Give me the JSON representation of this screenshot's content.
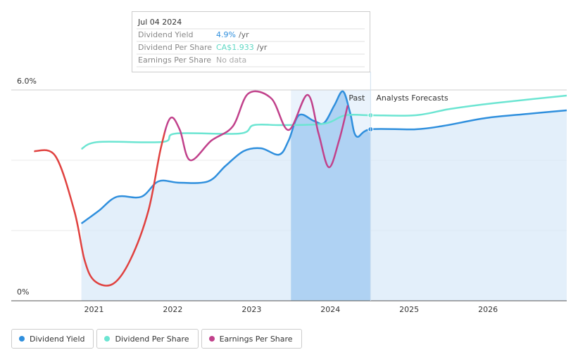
{
  "chart_data": {
    "type": "line",
    "xlim": [
      2019.95,
      2027
    ],
    "xticks": [
      {
        "value": 2021,
        "label": "2021"
      },
      {
        "value": 2022,
        "label": "2022"
      },
      {
        "value": 2023,
        "label": "2023"
      },
      {
        "value": 2024,
        "label": "2024"
      },
      {
        "value": 2025,
        "label": "2025"
      },
      {
        "value": 2026,
        "label": "2026"
      }
    ],
    "ylim": [
      0,
      6
    ],
    "yticks": [
      {
        "value": 0,
        "label": "0%"
      },
      {
        "value": 6,
        "label": "6.0%"
      }
    ],
    "grid_lines": [
      2,
      4,
      6
    ],
    "highlight_range": [
      2023.5,
      2024.51
    ],
    "forecast_start": 2024.51,
    "annotations": {
      "past": "Past",
      "forecast": "Analysts Forecasts"
    },
    "series": [
      {
        "name": "Dividend Yield",
        "color": "#2f8fdd",
        "area": true,
        "x": [
          2020.84,
          2021.06,
          2021.29,
          2021.6,
          2021.82,
          2022.09,
          2022.45,
          2022.67,
          2022.9,
          2023.12,
          2023.35,
          2023.47,
          2023.6,
          2023.79,
          2023.92,
          2024.05,
          2024.16,
          2024.25,
          2024.33,
          2024.51,
          2025.08,
          2025.44,
          2025.97,
          2026.51,
          2027
        ],
        "values": [
          2.2,
          2.56,
          2.96,
          2.96,
          3.4,
          3.36,
          3.4,
          3.84,
          4.26,
          4.34,
          4.16,
          4.56,
          5.28,
          5.12,
          5.06,
          5.56,
          5.96,
          5.36,
          4.68,
          4.88,
          4.88,
          4.98,
          5.2,
          5.32,
          5.42
        ]
      },
      {
        "name": "Dividend Per Share",
        "color": "#6ce5d2",
        "x": [
          2020.84,
          2021.06,
          2021.87,
          2022.04,
          2022.85,
          2023.03,
          2023.39,
          2023.92,
          2024.19,
          2024.51,
          2025.08,
          2025.52,
          2026.06,
          2027
        ],
        "values": [
          4.32,
          4.52,
          4.52,
          4.76,
          4.76,
          5.0,
          5.0,
          5.04,
          5.28,
          5.28,
          5.28,
          5.46,
          5.62,
          5.84
        ]
      },
      {
        "name": "Earnings Per Share",
        "color": "#c1418b",
        "early_color": "#e0413f",
        "color_change_x": 2021.9,
        "x": [
          2020.24,
          2020.51,
          2020.75,
          2020.88,
          2021.01,
          2021.24,
          2021.46,
          2021.69,
          2021.85,
          2021.97,
          2022.09,
          2022.22,
          2022.49,
          2022.76,
          2022.96,
          2023.25,
          2023.47,
          2023.71,
          2023.85,
          2023.98,
          2024.11,
          2024.22
        ],
        "values": [
          4.26,
          4.12,
          2.56,
          1.16,
          0.56,
          0.48,
          1.16,
          2.56,
          4.36,
          5.2,
          4.86,
          4.0,
          4.56,
          4.96,
          5.9,
          5.76,
          4.86,
          5.86,
          4.76,
          3.8,
          4.56,
          5.56
        ]
      }
    ],
    "tooltip": {
      "date": "Jul 04 2024",
      "rows": [
        [
          "Dividend Yield",
          "4.9%",
          "/yr"
        ],
        [
          "Dividend Per Share",
          "CA$1.933",
          "/yr"
        ],
        [
          "Earnings Per Share",
          "No data"
        ]
      ]
    }
  }
}
